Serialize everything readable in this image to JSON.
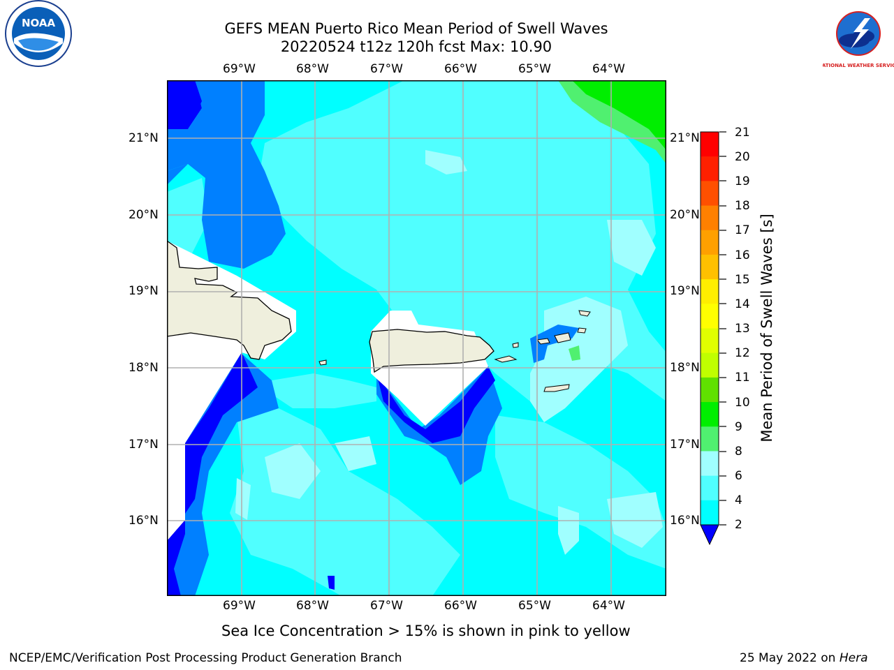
{
  "header": {
    "title_line1": "GEFS MEAN Puerto Rico Mean Period of Swell Waves",
    "title_line2": "20220524 t12z 120h fcst   Max: 10.90"
  },
  "logos": {
    "noaa_text": "NOAA",
    "nws_text": "NATIONAL WEATHER SERVICE"
  },
  "map": {
    "lon_labels": [
      "69°W",
      "68°W",
      "67°W",
      "66°W",
      "65°W",
      "64°W"
    ],
    "lat_labels": [
      "21°N",
      "20°N",
      "19°N",
      "18°N",
      "17°N",
      "16°N"
    ],
    "colors": {
      "deep_blue": "#0000ff",
      "mid_blue": "#0080ff",
      "cyan": "#00ffff",
      "light_cyan": "#50ffff",
      "pale_cyan": "#a0ffff",
      "green": "#00ee00",
      "light_green": "#50f070",
      "land": "#efefdd",
      "grid": "#b0b0b0"
    }
  },
  "colorbar": {
    "label": "Mean Period of Swell Waves [s]",
    "ticks": [
      "21",
      "20",
      "19",
      "18",
      "17",
      "16",
      "15",
      "14",
      "13",
      "12",
      "11",
      "10",
      "9",
      "8",
      "6",
      "4",
      "2"
    ],
    "colors_top_to_bottom": [
      "#ff0000",
      "#ff2000",
      "#ff5000",
      "#ff8000",
      "#ffa000",
      "#ffc000",
      "#ffee00",
      "#ffff00",
      "#e0ff00",
      "#c0ff00",
      "#60e000",
      "#00ee00",
      "#50f070",
      "#a0ffff",
      "#50ffff",
      "#00ffff",
      "#0080ff"
    ],
    "extend_color": "#0000ff"
  },
  "caption": "Sea Ice Concentration > 15% is shown in pink to yellow",
  "footer": {
    "left": "NCEP/EMC/Verification Post Processing Product Generation Branch",
    "right_prefix": "25 May 2022 on ",
    "right_host": "Hera"
  }
}
